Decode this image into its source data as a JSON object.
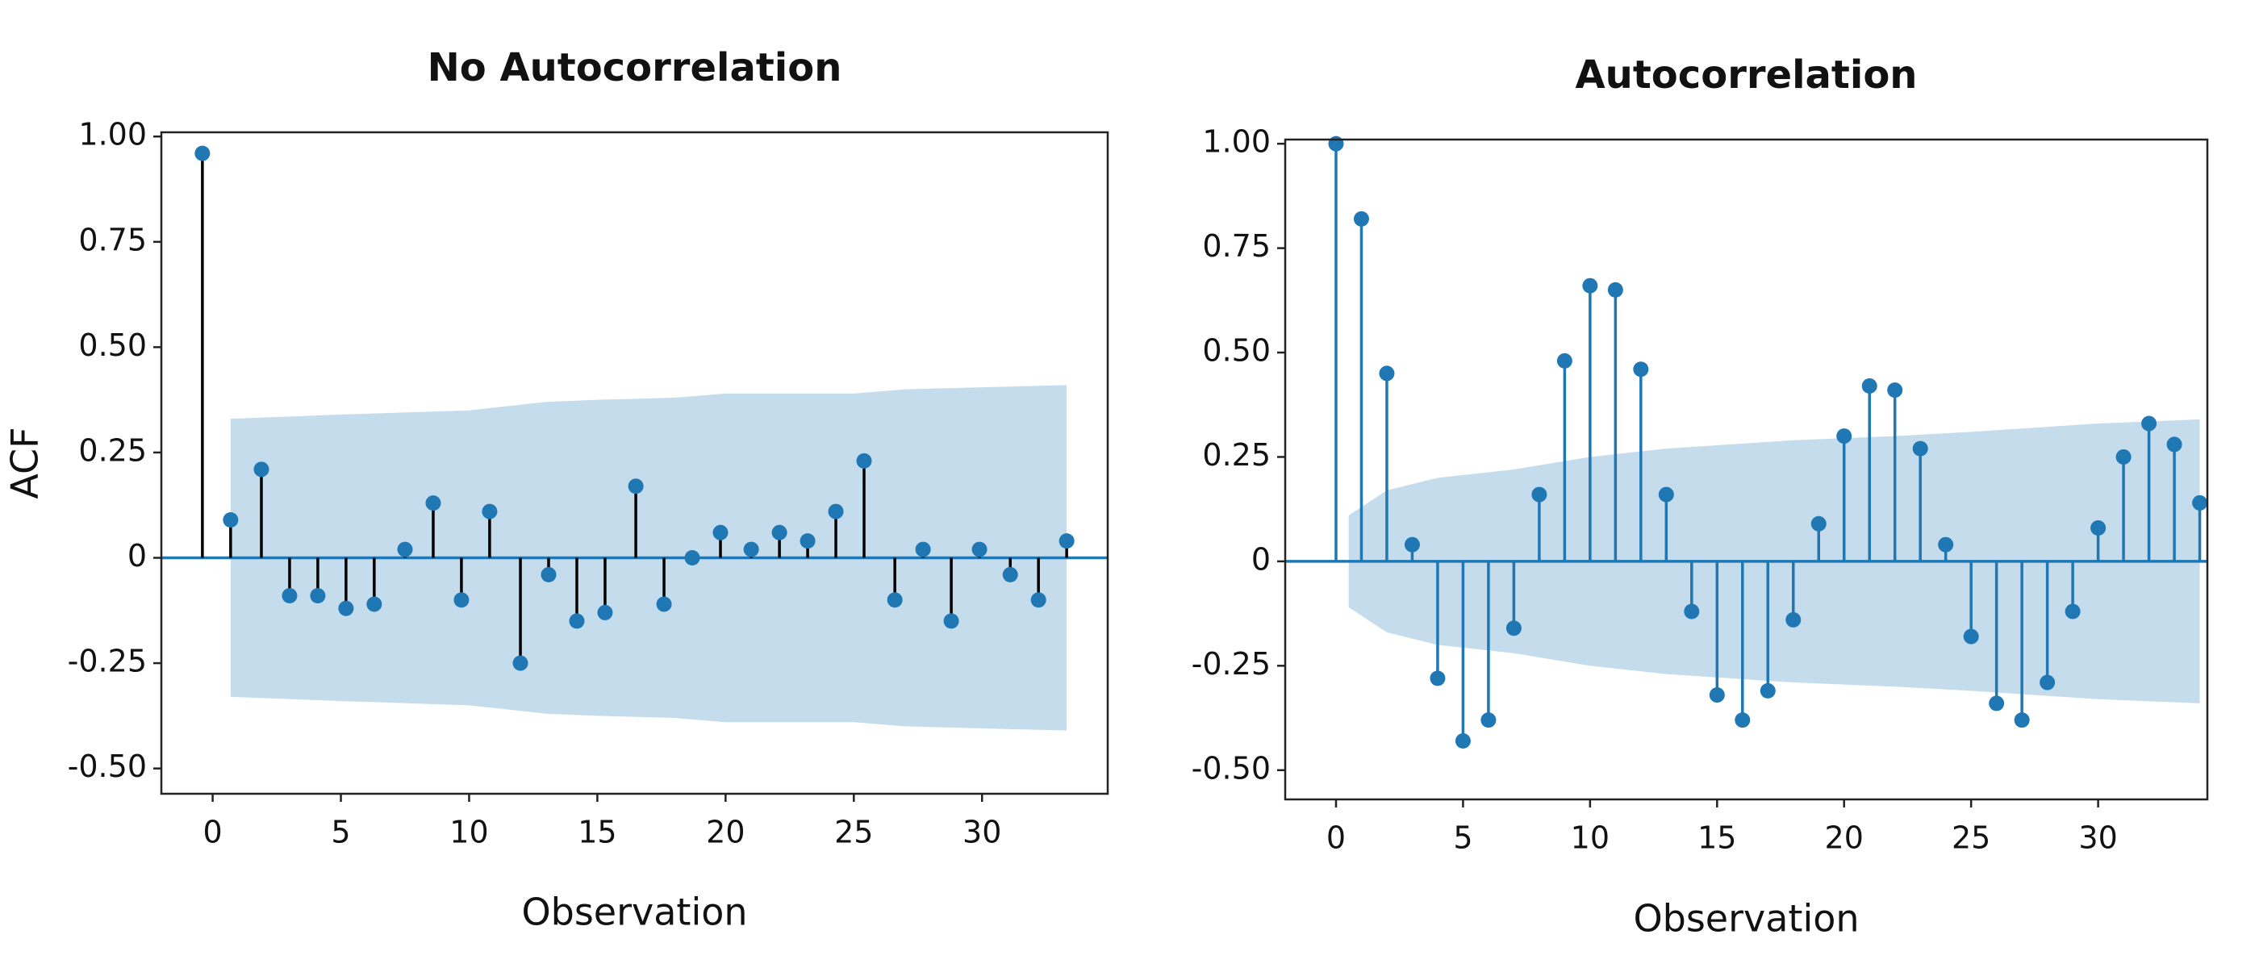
{
  "chart_data": [
    {
      "type": "stem",
      "title": "No Autocorrelation",
      "xlabel": "Observation",
      "ylabel": "ACF",
      "x": [
        -0.4,
        0.7,
        1.9,
        3.0,
        4.1,
        5.2,
        6.3,
        7.5,
        8.6,
        9.7,
        10.8,
        12.0,
        13.1,
        14.2,
        15.3,
        16.5,
        17.6,
        18.7,
        19.8,
        21.0,
        22.1,
        23.2,
        24.3,
        25.4,
        26.6,
        27.7,
        28.8,
        29.9,
        31.1,
        32.2,
        33.3
      ],
      "values": [
        0.96,
        0.09,
        0.21,
        -0.09,
        -0.09,
        -0.12,
        -0.11,
        0.02,
        0.13,
        -0.1,
        0.11,
        -0.25,
        -0.04,
        -0.15,
        -0.13,
        0.17,
        -0.11,
        0.0,
        0.06,
        0.02,
        0.06,
        0.04,
        0.11,
        0.23,
        -0.1,
        0.02,
        -0.15,
        0.02,
        -0.04,
        -0.1,
        0.04
      ],
      "stem_color": "#000000",
      "marker_color": "#1f77b4",
      "baseline_color": "#1f77b4",
      "band_color": "#c5dcec",
      "confidence_band": {
        "x": [
          0.7,
          5,
          10,
          13,
          15,
          18,
          20,
          25,
          27,
          33.3
        ],
        "upper": [
          0.33,
          0.34,
          0.35,
          0.37,
          0.375,
          0.38,
          0.39,
          0.39,
          0.4,
          0.41
        ],
        "lower": [
          -0.33,
          -0.34,
          -0.35,
          -0.37,
          -0.375,
          -0.38,
          -0.39,
          -0.39,
          -0.4,
          -0.41
        ]
      },
      "xlim": [
        -2.0,
        34.9
      ],
      "ylim": [
        -0.56,
        1.01
      ],
      "xticks": [
        0,
        5,
        10,
        15,
        20,
        25,
        30
      ],
      "yticks": [
        {
          "value": 1.0,
          "label": "1.00"
        },
        {
          "value": 0.75,
          "label": "0.75"
        },
        {
          "value": 0.5,
          "label": "0.50"
        },
        {
          "value": 0.25,
          "label": "0.25"
        },
        0,
        {
          "value": -0.25,
          "label": "-0.25"
        },
        {
          "value": -0.5,
          "label": "-0.50"
        }
      ]
    },
    {
      "type": "stem",
      "title": "Autocorrelation",
      "xlabel": "Observation",
      "x": [
        0,
        1,
        2,
        3,
        4,
        5,
        6,
        7,
        8,
        9,
        10,
        11,
        12,
        13,
        14,
        15,
        16,
        17,
        18,
        19,
        20,
        21,
        22,
        23,
        24,
        25,
        26,
        27,
        28,
        29,
        30,
        31,
        32,
        33,
        34
      ],
      "values": [
        1.0,
        0.82,
        0.45,
        0.04,
        -0.28,
        -0.43,
        -0.38,
        -0.16,
        0.16,
        0.48,
        0.66,
        0.65,
        0.46,
        0.16,
        -0.12,
        -0.32,
        -0.38,
        -0.31,
        -0.14,
        0.09,
        0.3,
        0.42,
        0.41,
        0.27,
        0.04,
        -0.18,
        -0.34,
        -0.38,
        -0.29,
        -0.12,
        0.08,
        0.25,
        0.33,
        0.28,
        0.14
      ],
      "stem_color": "#1f77b4",
      "marker_color": "#1f77b4",
      "baseline_color": "#1f77b4",
      "band_color": "#c5dcec",
      "confidence_band": {
        "x": [
          0.5,
          2,
          4,
          7,
          10,
          13,
          18,
          22,
          25,
          30,
          34
        ],
        "upper": [
          0.11,
          0.17,
          0.2,
          0.22,
          0.25,
          0.27,
          0.29,
          0.3,
          0.31,
          0.33,
          0.34
        ],
        "lower": [
          -0.11,
          -0.17,
          -0.2,
          -0.22,
          -0.25,
          -0.27,
          -0.29,
          -0.3,
          -0.31,
          -0.33,
          -0.34
        ]
      },
      "xlim": [
        -2.0,
        34.3
      ],
      "ylim": [
        -0.57,
        1.01
      ],
      "xticks": [
        0,
        5,
        10,
        15,
        20,
        25,
        30
      ],
      "yticks": [
        {
          "value": 1.0,
          "label": "1.00"
        },
        {
          "value": 0.75,
          "label": "0.75"
        },
        {
          "value": 0.5,
          "label": "0.50"
        },
        {
          "value": 0.25,
          "label": "0.25"
        },
        0,
        {
          "value": -0.25,
          "label": "-0.25"
        },
        {
          "value": -0.5,
          "label": "-0.50"
        }
      ]
    }
  ]
}
